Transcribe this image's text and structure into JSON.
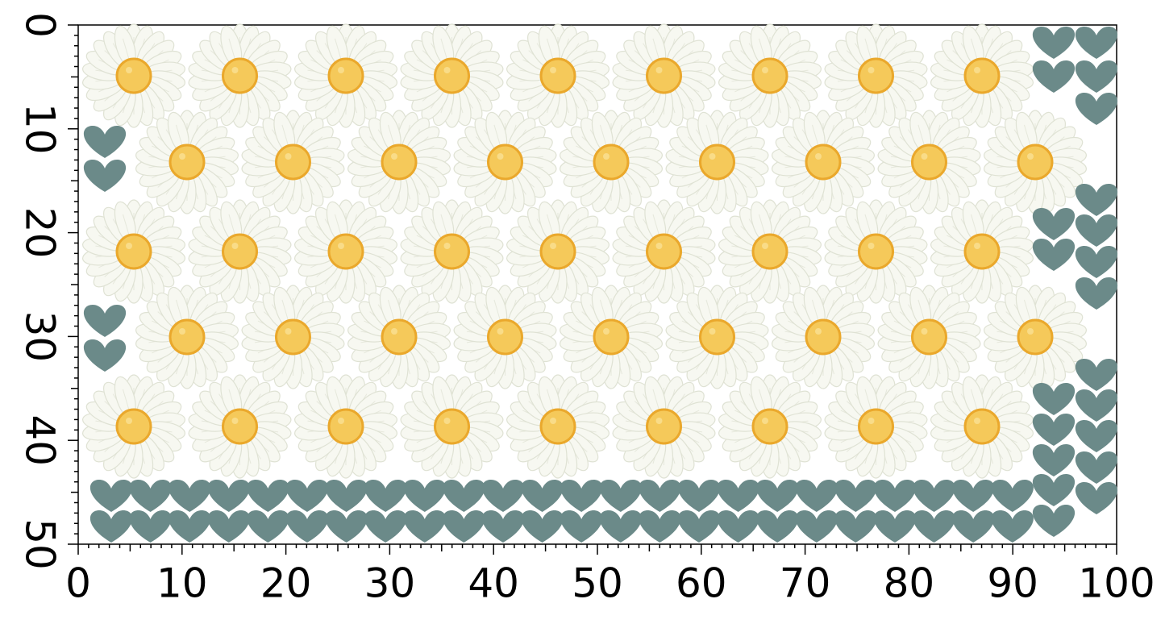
{
  "x_axis": {
    "ticks": [
      0,
      10,
      20,
      30,
      40,
      50,
      60,
      70,
      80,
      90,
      100
    ]
  },
  "y_axis": {
    "ticks": [
      0,
      10,
      20,
      30,
      40,
      50
    ]
  }
}
